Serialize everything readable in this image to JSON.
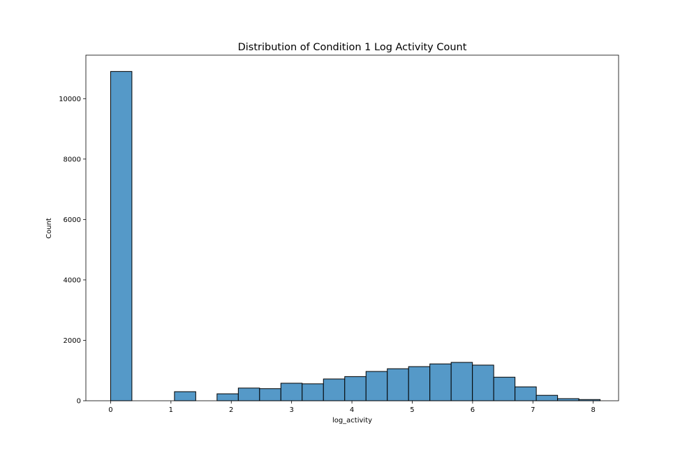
{
  "chart_data": {
    "type": "bar",
    "title": "Distribution of Condition 1 Log Activity Count",
    "xlabel": "log_activity",
    "ylabel": "Count",
    "xlim": [
      -0.41,
      8.42
    ],
    "ylim": [
      0,
      11440
    ],
    "xticks": [
      0,
      1,
      2,
      3,
      4,
      5,
      6,
      7,
      8
    ],
    "yticks": [
      0,
      2000,
      4000,
      6000,
      8000,
      10000
    ],
    "bin_width": 0.3528,
    "bar_color": "#5599c8",
    "edge_color": "#000000",
    "bins": [
      {
        "x0": 0.0,
        "value": 10900
      },
      {
        "x0": 0.3528,
        "value": 0
      },
      {
        "x0": 0.7056,
        "value": 0
      },
      {
        "x0": 1.0584,
        "value": 300
      },
      {
        "x0": 1.4112,
        "value": 0
      },
      {
        "x0": 1.764,
        "value": 230
      },
      {
        "x0": 2.1168,
        "value": 420
      },
      {
        "x0": 2.4696,
        "value": 400
      },
      {
        "x0": 2.8224,
        "value": 580
      },
      {
        "x0": 3.1752,
        "value": 560
      },
      {
        "x0": 3.528,
        "value": 720
      },
      {
        "x0": 3.8808,
        "value": 800
      },
      {
        "x0": 4.2336,
        "value": 970
      },
      {
        "x0": 4.5864,
        "value": 1060
      },
      {
        "x0": 4.9392,
        "value": 1130
      },
      {
        "x0": 5.292,
        "value": 1220
      },
      {
        "x0": 5.6448,
        "value": 1270
      },
      {
        "x0": 5.9976,
        "value": 1180
      },
      {
        "x0": 6.3504,
        "value": 780
      },
      {
        "x0": 6.7032,
        "value": 460
      },
      {
        "x0": 7.056,
        "value": 180
      },
      {
        "x0": 7.4088,
        "value": 70
      },
      {
        "x0": 7.7616,
        "value": 40
      }
    ]
  }
}
